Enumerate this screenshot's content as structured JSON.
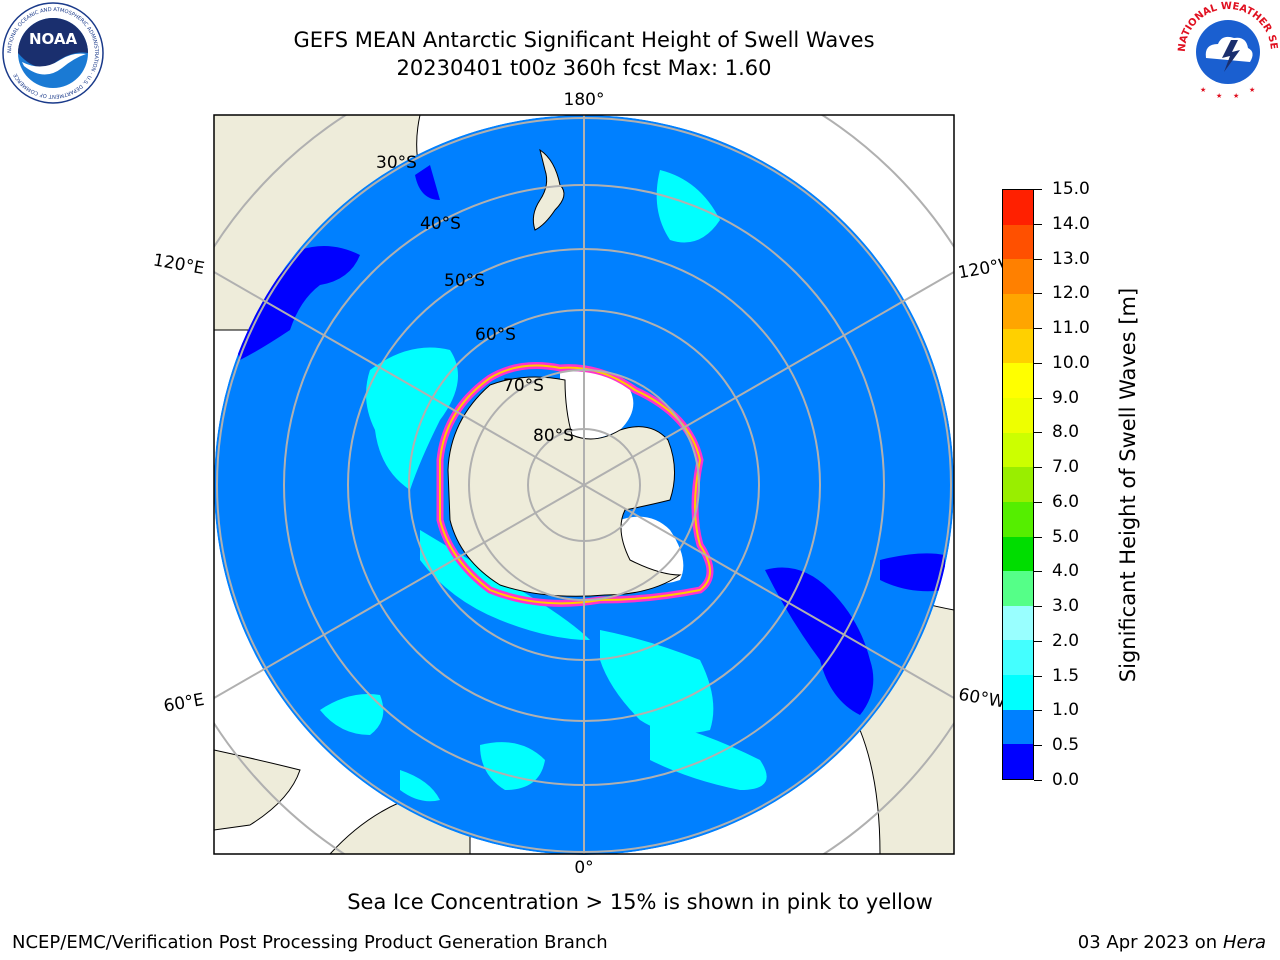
{
  "header": {
    "title_line1": "GEFS MEAN Antarctic Significant Height of Swell Waves",
    "title_line2": "20230401 t00z 360h fcst   Max: 1.60"
  },
  "logos": {
    "noaa_text": "NOAA",
    "noaa_ring_text": "NATIONAL OCEANIC AND ATMOSPHERIC ADMINISTRATION · U.S. DEPARTMENT OF COMMERCE",
    "nws_ring_text": "NATIONAL WEATHER SERVICE"
  },
  "map": {
    "projection": "south-polar-stereographic",
    "longitude_labels": {
      "top": "180°",
      "bottom": "0°",
      "upper_left": "120°E",
      "upper_right": "120°W",
      "lower_left": "60°E",
      "lower_right": "60°W"
    },
    "latitude_labels": [
      "30°S",
      "40°S",
      "50°S",
      "60°S",
      "70°S",
      "80°S"
    ],
    "colors": {
      "ocean_main": "#0080ff",
      "land": "#eeecda",
      "low_swell": "#0000ff",
      "mid_swell": "#00ffff",
      "ice_pink": "#ff33cc",
      "ice_yellow": "#ffcc00",
      "graticule": "#b0b0b0"
    }
  },
  "colorbar": {
    "title": "Significant Height of Swell Waves [m]",
    "ticks": [
      "0.0",
      "0.5",
      "1.0",
      "1.5",
      "2.0",
      "3.0",
      "4.0",
      "5.0",
      "6.0",
      "7.0",
      "8.0",
      "9.0",
      "10.0",
      "11.0",
      "12.0",
      "13.0",
      "14.0",
      "15.0"
    ],
    "segment_colors": [
      "#0000ff",
      "#0080ff",
      "#00ffff",
      "#44ffff",
      "#99ffff",
      "#55ff88",
      "#00dd00",
      "#55ee00",
      "#99ee00",
      "#ccff00",
      "#eeff00",
      "#ffff00",
      "#ffd000",
      "#ffa500",
      "#ff8000",
      "#ff5000",
      "#ff2000"
    ]
  },
  "caption": "Sea Ice Concentration > 15% is shown in pink to yellow",
  "footer": {
    "left": "NCEP/EMC/Verification Post Processing Product Generation Branch",
    "right_prefix": "03 Apr 2023 on ",
    "right_host": "Hera"
  }
}
